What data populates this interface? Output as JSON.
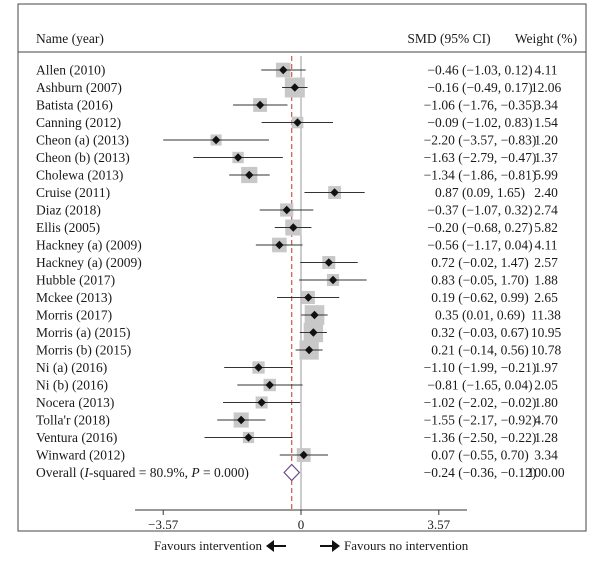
{
  "chart_data": {
    "type": "forest",
    "headers": {
      "name": "Name (year)",
      "ci": "SMD (95% CI)",
      "weight": "Weight (%)"
    },
    "xlim": [
      -4.3,
      4.3
    ],
    "ticks": [
      {
        "value": -3.57,
        "label": "−3.57"
      },
      {
        "value": 0,
        "label": "0"
      },
      {
        "value": 3.57,
        "label": "3.57"
      }
    ],
    "studies": [
      {
        "name": "Allen (2010)",
        "smd": -0.46,
        "lo": -1.03,
        "hi": 0.12,
        "ci_text": "−0.46 (−1.03, 0.12)",
        "weight": 4.11,
        "weight_text": "4.11"
      },
      {
        "name": "Ashburn (2007)",
        "smd": -0.16,
        "lo": -0.49,
        "hi": 0.17,
        "ci_text": "−0.16 (−0.49, 0.17)",
        "weight": 12.06,
        "weight_text": "12.06"
      },
      {
        "name": "Batista (2016)",
        "smd": -1.06,
        "lo": -1.76,
        "hi": -0.35,
        "ci_text": "−1.06 (−1.76, −0.35)",
        "weight": 3.34,
        "weight_text": "3.34"
      },
      {
        "name": "Canning (2012)",
        "smd": -0.09,
        "lo": -1.02,
        "hi": 0.83,
        "ci_text": "−0.09 (−1.02, 0.83)",
        "weight": 1.54,
        "weight_text": "1.54"
      },
      {
        "name": "Cheon (a) (2013)",
        "smd": -2.2,
        "lo": -3.57,
        "hi": -0.83,
        "ci_text": "−2.20 (−3.57, −0.83)",
        "weight": 1.2,
        "weight_text": "1.20"
      },
      {
        "name": "Cheon (b) (2013)",
        "smd": -1.63,
        "lo": -2.79,
        "hi": -0.47,
        "ci_text": "−1.63 (−2.79, −0.47)",
        "weight": 1.37,
        "weight_text": "1.37"
      },
      {
        "name": "Cholewa (2013)",
        "smd": -1.34,
        "lo": -1.86,
        "hi": -0.81,
        "ci_text": "−1.34 (−1.86, −0.81)",
        "weight": 5.99,
        "weight_text": "5.99"
      },
      {
        "name": "Cruise (2011)",
        "smd": 0.87,
        "lo": 0.09,
        "hi": 1.65,
        "ci_text": "0.87 (0.09, 1.65)",
        "weight": 2.4,
        "weight_text": "2.40"
      },
      {
        "name": "Diaz (2018)",
        "smd": -0.37,
        "lo": -1.07,
        "hi": 0.32,
        "ci_text": "−0.37 (−1.07, 0.32)",
        "weight": 2.74,
        "weight_text": "2.74"
      },
      {
        "name": "Ellis (2005)",
        "smd": -0.2,
        "lo": -0.68,
        "hi": 0.27,
        "ci_text": "−0.20 (−0.68, 0.27)",
        "weight": 5.82,
        "weight_text": "5.82"
      },
      {
        "name": "Hackney (a) (2009)",
        "smd": -0.56,
        "lo": -1.17,
        "hi": 0.04,
        "ci_text": "−0.56 (−1.17, 0.04)",
        "weight": 4.11,
        "weight_text": "4.11"
      },
      {
        "name": "Hackney (a) (2009)",
        "smd": 0.72,
        "lo": -0.02,
        "hi": 1.47,
        "ci_text": "0.72 (−0.02, 1.47)",
        "weight": 2.57,
        "weight_text": "2.57"
      },
      {
        "name": "Hubble (2017)",
        "smd": 0.83,
        "lo": -0.05,
        "hi": 1.7,
        "ci_text": "0.83 (−0.05, 1.70)",
        "weight": 1.88,
        "weight_text": "1.88"
      },
      {
        "name": "Mckee (2013)",
        "smd": 0.19,
        "lo": -0.62,
        "hi": 0.99,
        "ci_text": "0.19 (−0.62, 0.99)",
        "weight": 2.65,
        "weight_text": "2.65"
      },
      {
        "name": "Morris (2017)",
        "smd": 0.35,
        "lo": 0.01,
        "hi": 0.69,
        "ci_text": "0.35 (0.01, 0.69)",
        "weight": 11.38,
        "weight_text": "11.38"
      },
      {
        "name": "Morris (a) (2015)",
        "smd": 0.32,
        "lo": -0.03,
        "hi": 0.67,
        "ci_text": "0.32 (−0.03, 0.67)",
        "weight": 10.95,
        "weight_text": "10.95"
      },
      {
        "name": "Morris (b) (2015)",
        "smd": 0.21,
        "lo": -0.14,
        "hi": 0.56,
        "ci_text": "0.21 (−0.14, 0.56)",
        "weight": 10.78,
        "weight_text": "10.78"
      },
      {
        "name": "Ni (a) (2016)",
        "smd": -1.1,
        "lo": -1.99,
        "hi": -0.21,
        "ci_text": "−1.10 (−1.99, −0.21)",
        "weight": 1.97,
        "weight_text": "1.97"
      },
      {
        "name": "Ni (b) (2016)",
        "smd": -0.81,
        "lo": -1.65,
        "hi": 0.04,
        "ci_text": "−0.81 (−1.65, 0.04)",
        "weight": 2.05,
        "weight_text": "2.05"
      },
      {
        "name": "Nocera (2013)",
        "smd": -1.02,
        "lo": -2.02,
        "hi": -0.02,
        "ci_text": "−1.02 (−2.02, −0.02)",
        "weight": 1.8,
        "weight_text": "1.80"
      },
      {
        "name": "Tolla'r (2018)",
        "smd": -1.55,
        "lo": -2.17,
        "hi": -0.92,
        "ci_text": "−1.55 (−2.17, −0.92)",
        "weight": 4.7,
        "weight_text": "4.70"
      },
      {
        "name": "Ventura (2016)",
        "smd": -1.36,
        "lo": -2.5,
        "hi": -0.22,
        "ci_text": "−1.36 (−2.50, −0.22)",
        "weight": 1.28,
        "weight_text": "1.28"
      },
      {
        "name": "Winward (2012)",
        "smd": 0.07,
        "lo": -0.55,
        "hi": 0.7,
        "ci_text": "0.07 (−0.55, 0.70)",
        "weight": 3.34,
        "weight_text": "3.34"
      }
    ],
    "overall": {
      "label_prefix": "Overall (",
      "label_stat": "I",
      "label_suffix": "-squared = 80.9%, ",
      "label_p": "P",
      "label_end": " = 0.000)",
      "smd": -0.24,
      "lo": -0.36,
      "hi": -0.12,
      "ci_text": "−0.24 (−0.36, −0.12)",
      "weight_text": "100.00"
    },
    "favours_left": "Favours intervention",
    "favours_right": "Favours no intervention",
    "colors": {
      "box": "#c8c8c8",
      "diamond_fill": "#ffffff",
      "diamond_stroke": "#6b4a8c",
      "null_line": "#9a9a9a",
      "overall_line": "#c0392b",
      "line": "#333333"
    }
  }
}
